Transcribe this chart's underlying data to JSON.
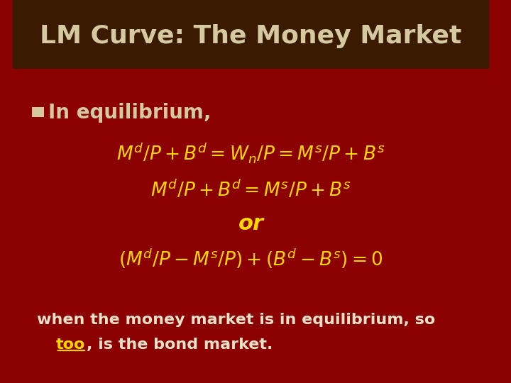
{
  "title": "LM Curve: The Money Market",
  "title_color": "#D4C9A0",
  "bg_color_top": "#3A1A00",
  "bg_color": "#8B0000",
  "bullet_color": "#D4C9A0",
  "bullet_text": "In equilibrium,",
  "line1": "M$^d$/P + B$^d$ = W$_n$/P = M$^s$/P + B$^s$",
  "line2": "M$^d$/P + B$^d$ = M$^s$/P + B$^s$",
  "line3": "or",
  "line4": "(M$^d$/P - M$^s$/P) + (B$^d$ – B$^s$) = 0",
  "bottom_text1": "when the money market is in equilibrium, so",
  "bottom_text2_prefix": "   ",
  "bottom_underline": "too",
  "bottom_text2_suffix": ", is the bond market.",
  "yellow": "#FFD700",
  "white_text": "#E8E0C8"
}
